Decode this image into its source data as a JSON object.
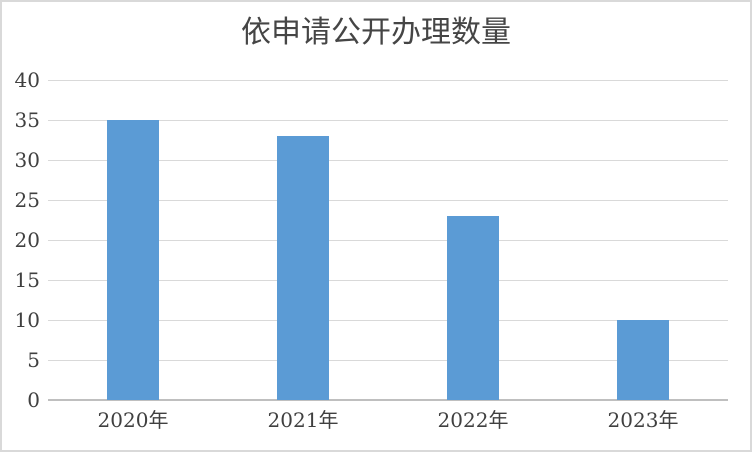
{
  "chart_data": {
    "type": "bar",
    "title": "依申请公开办理数量",
    "categories": [
      "2020年",
      "2021年",
      "2022年",
      "2023年"
    ],
    "values": [
      35,
      33,
      23,
      10
    ],
    "xlabel": "",
    "ylabel": "",
    "ylim": [
      0,
      40
    ],
    "ytick_step": 5,
    "yticks": [
      0,
      5,
      10,
      15,
      20,
      25,
      30,
      35,
      40
    ],
    "grid": true,
    "legend": "none",
    "colors": {
      "bar": "#5b9bd5",
      "gridline": "#d9d9d9",
      "axis_line": "#bfbfbf",
      "tick_label": "#404040",
      "title": "#454545",
      "frame_border": "#d9d9d9",
      "background": "#ffffff"
    }
  }
}
